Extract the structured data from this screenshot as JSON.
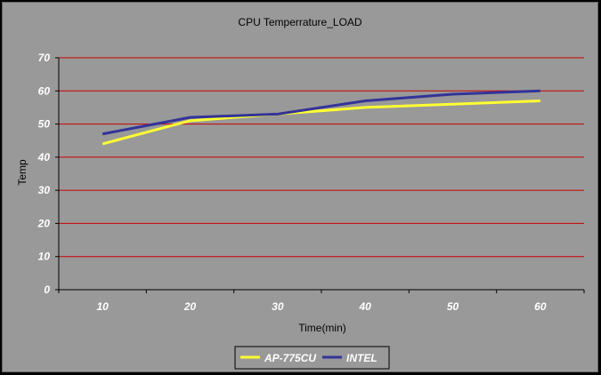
{
  "chart_data": {
    "type": "line",
    "title": "CPU Temperrature_LOAD",
    "xlabel": "Time(min)",
    "ylabel": "Temp",
    "categories": [
      "10",
      "20",
      "30",
      "40",
      "50",
      "60"
    ],
    "ylim": [
      0,
      70
    ],
    "yticks": [
      "0",
      "10",
      "20",
      "30",
      "40",
      "50",
      "60",
      "70"
    ],
    "grid": true,
    "legend_position": "bottom",
    "series": [
      {
        "name": "AP-775CU",
        "color": "#ffff33",
        "points": [
          [
            10,
            44
          ],
          [
            20,
            51
          ],
          [
            30,
            53
          ],
          [
            40,
            55
          ],
          [
            50,
            56
          ],
          [
            60,
            57
          ]
        ]
      },
      {
        "name": "INTEL",
        "color": "#333399",
        "points": [
          [
            10,
            47
          ],
          [
            20,
            52
          ],
          [
            30,
            53
          ],
          [
            40,
            57
          ],
          [
            50,
            59
          ],
          [
            60,
            60
          ]
        ]
      }
    ],
    "colors": {
      "plot_background": "#999999",
      "gridline": "#cc0000",
      "tick_label": "#ffffff",
      "frame": "#000000"
    }
  }
}
